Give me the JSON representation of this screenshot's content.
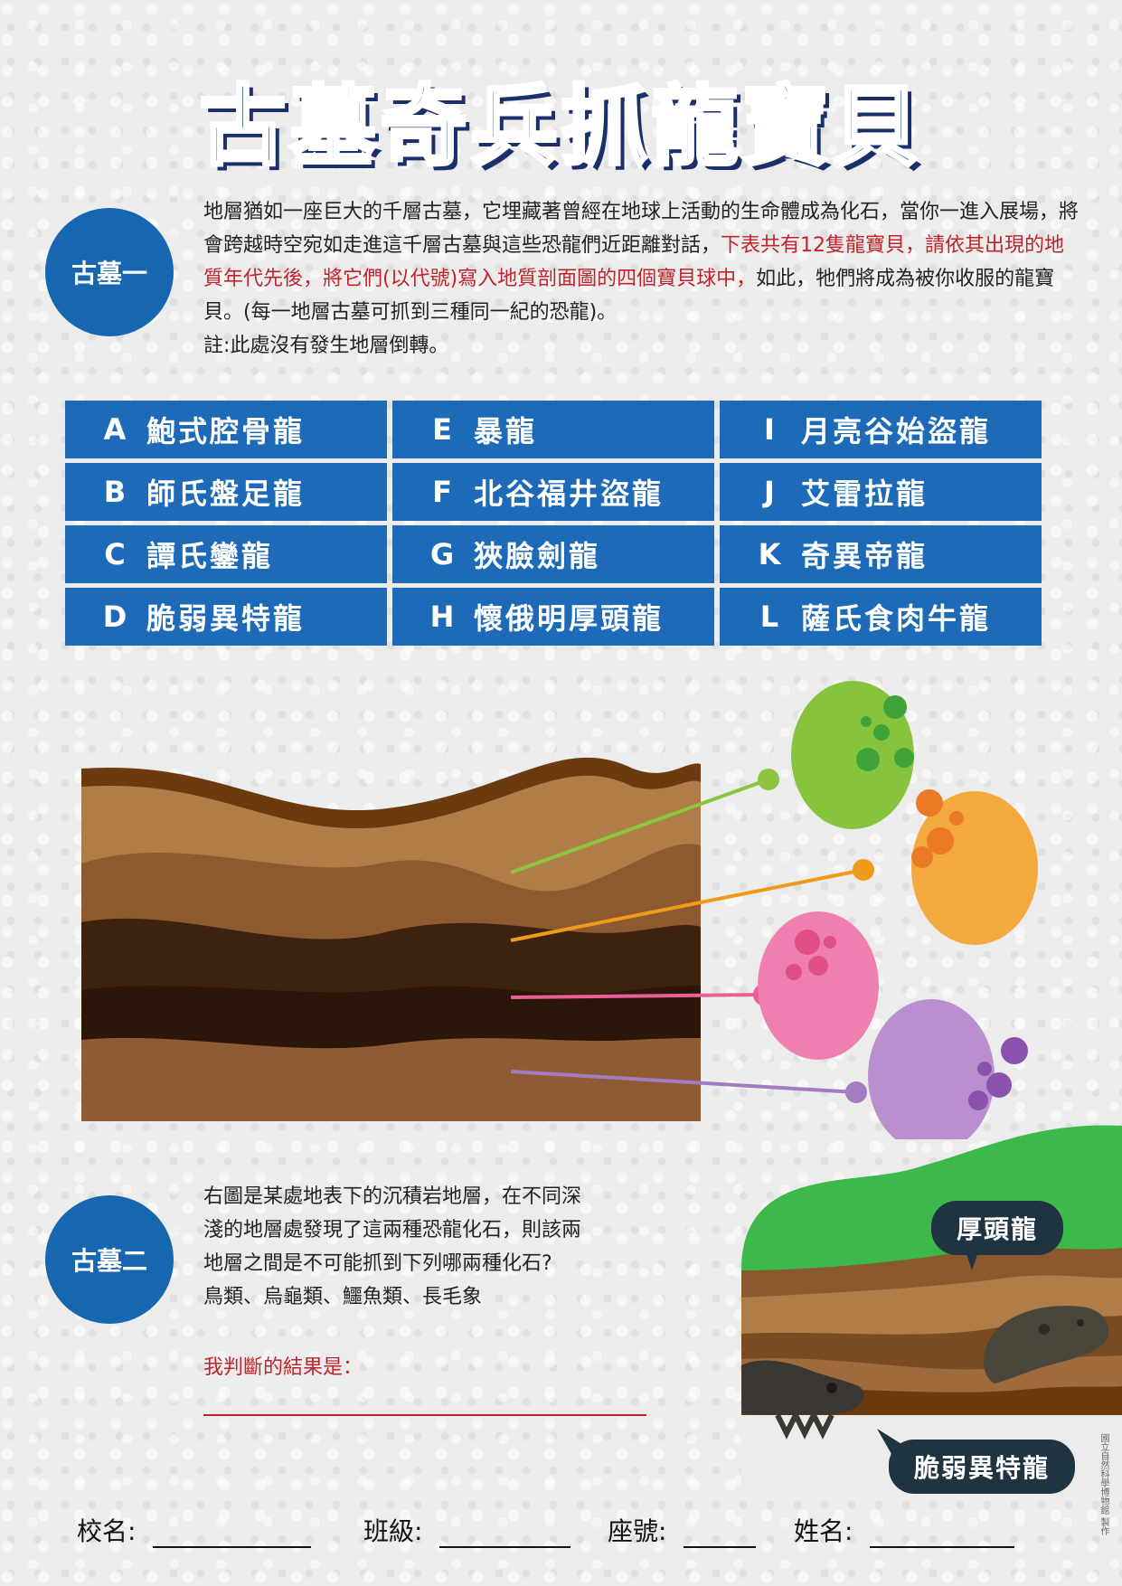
{
  "title": "古墓奇兵抓龍寶貝",
  "section1": {
    "badge": "古墓一",
    "text_before_red": "地層猶如一座巨大的千層古墓，它埋藏著曾經在地球上活動的生命體成為化石，當你一進入展場，將會跨越時空宛如走進這千層古墓與這些恐龍們近距離對話，",
    "text_red": "下表共有12隻龍寶貝，請依其出現的地質年代先後，將它們(以代號)寫入地質剖面圖的四個寶貝球中，",
    "text_after_red": "如此，牠們將成為被你收服的龍寶貝。(每一地層古墓可抓到三種同一紀的恐龍)。",
    "note": "註:此處沒有發生地層倒轉。"
  },
  "dinosaurs": [
    [
      {
        "code": "A",
        "name": "鮑式腔骨龍"
      },
      {
        "code": "E",
        "name": "暴龍"
      },
      {
        "code": "I",
        "name": "月亮谷始盜龍"
      }
    ],
    [
      {
        "code": "B",
        "name": "師氏盤足龍"
      },
      {
        "code": "F",
        "name": "北谷福井盜龍"
      },
      {
        "code": "J",
        "name": "艾雷拉龍"
      }
    ],
    [
      {
        "code": "C",
        "name": "譚氏鑾龍"
      },
      {
        "code": "G",
        "name": "狹臉劍龍"
      },
      {
        "code": "K",
        "name": "奇異帝龍"
      }
    ],
    [
      {
        "code": "D",
        "name": "脆弱異特龍"
      },
      {
        "code": "H",
        "name": "懷俄明厚頭龍"
      },
      {
        "code": "L",
        "name": "薩氏食肉牛龍"
      }
    ]
  ],
  "eggs": {
    "colors": [
      "#86c43d",
      "#f4a93f",
      "#ee7fb0",
      "#b98fd0"
    ],
    "spot_colors": [
      "#3fa33a",
      "#ea7a25",
      "#df4f85",
      "#8a52ad"
    ],
    "line_colors": [
      "#8cc63f",
      "#f09a1a",
      "#ea5f98",
      "#a27cc0"
    ]
  },
  "strata_colors": [
    "#6b3a0e",
    "#b07d48",
    "#8c5a2e",
    "#3e2210",
    "#2c1609",
    "#8e5c33"
  ],
  "section2": {
    "badge": "古墓二",
    "lines": [
      "右圖是某處地表下的沉積岩地層，在不同深",
      "淺的地層處發現了這兩種恐龍化石，則該兩",
      "地層之間是不可能抓到下列哪兩種化石?",
      "鳥類、烏龜類、鱷魚類、長毛象"
    ],
    "answer_label": "我判斷的結果是："
  },
  "fossil_labels": {
    "upper": "厚頭龍",
    "lower": "脆弱異特龍"
  },
  "credit": "國立自然科學博物館 製作",
  "footer": {
    "school": "校名:",
    "class": "班級:",
    "seat": "座號:",
    "name": "姓名:"
  }
}
